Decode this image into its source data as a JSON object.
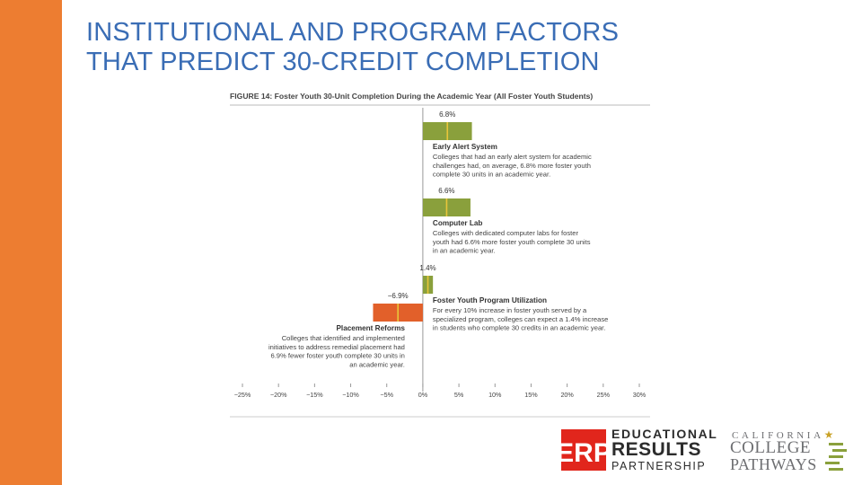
{
  "slide": {
    "title_lines": [
      "INSTITUTIONAL AND PROGRAM FACTORS",
      "THAT PREDICT 30-CREDIT COMPLETION"
    ],
    "title_color": "#3a6db5",
    "sidebar_color": "#ed7d31"
  },
  "chart_data": {
    "type": "bar",
    "orientation": "horizontal",
    "title": "FIGURE 14: Foster Youth 30-Unit Completion During the Academic Year (All Foster Youth Students)",
    "xlim": [
      -25,
      30
    ],
    "xticks": [
      "−25%",
      "−20%",
      "−15%",
      "−10%",
      "−5%",
      "0%",
      "5%",
      "10%",
      "15%",
      "20%",
      "25%",
      "30%"
    ],
    "bars": [
      {
        "name": "Early Alert System",
        "value": 6.8,
        "value_label": "6.8%",
        "color": "#8aa03c",
        "desc_lines": [
          "Colleges that had an early alert system for academic",
          "challenges had, on average, 6.8% more foster youth",
          "complete 30 units in an academic year."
        ]
      },
      {
        "name": "Computer Lab",
        "value": 6.6,
        "value_label": "6.6%",
        "color": "#8aa03c",
        "desc_lines": [
          "Colleges with dedicated computer labs for foster",
          "youth had 6.6% more foster youth complete 30 units",
          "in an academic year."
        ]
      },
      {
        "name": "Foster Youth Program Utilization",
        "value": 1.4,
        "value_label": "1.4%",
        "color": "#8aa03c",
        "desc_lines": [
          "For every 10% increase in foster youth served by a",
          "specialized program, colleges can expect a 1.4% increase",
          "in students who complete 30 credits in an academic year."
        ]
      },
      {
        "name": "Placement Reforms",
        "value": -6.9,
        "value_label": "−6.9%",
        "color": "#e2602a",
        "desc_lines": [
          "Colleges that identified and implemented",
          "initiatives to address remedial placement had",
          "6.9% fewer foster youth complete 30 units in",
          "an academic year."
        ]
      }
    ],
    "ci_color": "#e8c53a"
  },
  "logos": {
    "erp": {
      "mark": "ERP",
      "line1": "EDUCATIONAL",
      "line2": "RESULTS",
      "line3": "PARTNERSHIP",
      "mark_color": "#e1261c"
    },
    "ccp": {
      "line1": "CALIFORNIA",
      "line2": "COLLEGE",
      "line3": "PATHWAYS",
      "star_icon": "star-icon",
      "bar_color": "#8aa03c"
    }
  }
}
